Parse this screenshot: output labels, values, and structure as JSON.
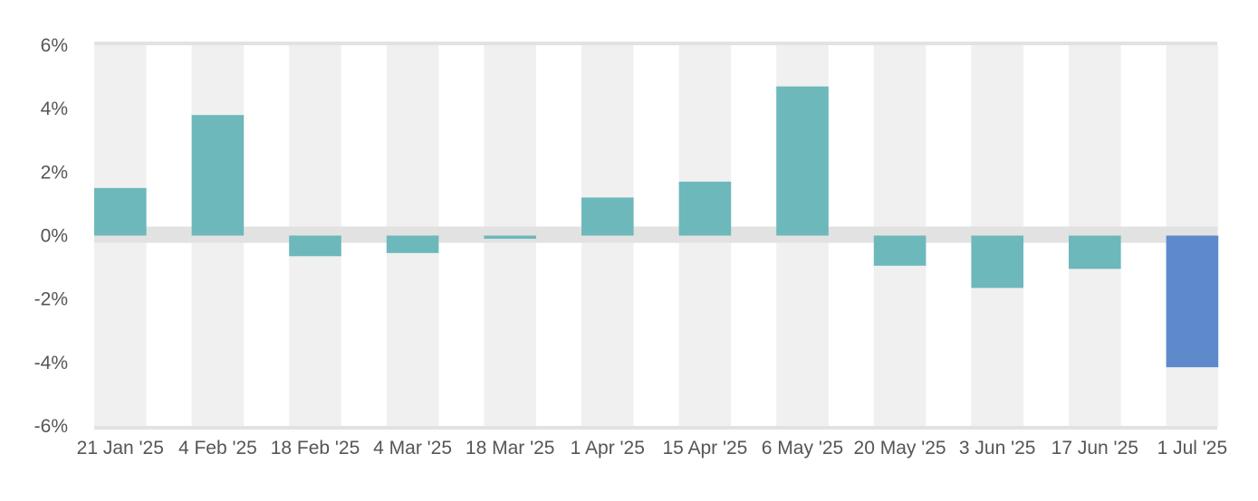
{
  "chart_data": {
    "type": "bar",
    "categories": [
      "21 Jan '25",
      "4 Feb '25",
      "18 Feb '25",
      "4 Mar '25",
      "18 Mar '25",
      "1 Apr '25",
      "15 Apr '25",
      "6 May '25",
      "20 May '25",
      "3 Jun '25",
      "17 Jun '25",
      "1 Jul '25"
    ],
    "values": [
      1.5,
      3.8,
      -0.65,
      -0.55,
      -0.1,
      1.2,
      1.7,
      4.7,
      -0.95,
      -1.65,
      -1.05,
      -4.15
    ],
    "ylim": [
      -6,
      6
    ],
    "yticks": [
      6,
      4,
      2,
      0,
      -2,
      -4,
      -6
    ],
    "ytick_labels": [
      "6%",
      "4%",
      "2%",
      "0%",
      "-2%",
      "-4%",
      "-6%"
    ],
    "title": "",
    "xlabel": "",
    "ylabel": "",
    "grid": false,
    "colors": {
      "bar": "#6db8bb",
      "highlight_bar": "#5e8acb",
      "band": "#f0f0f0",
      "zero_band": "#e2e2e2",
      "frame": "#e2e2e2",
      "text": "#555555"
    },
    "highlight_index": 11
  }
}
